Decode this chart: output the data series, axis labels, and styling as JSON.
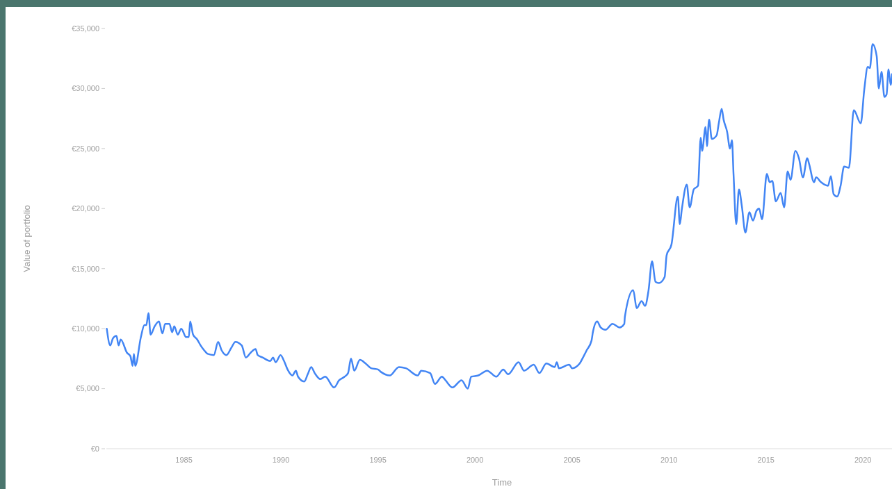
{
  "chart_data": {
    "type": "line",
    "xlabel": "Time",
    "ylabel": "Value of portfolio",
    "xlim": [
      1981,
      2021.5
    ],
    "xticks": [
      1985,
      1990,
      1995,
      2000,
      2005,
      2010,
      2015,
      2020
    ],
    "ylim": [
      0,
      35000
    ],
    "yticks": [
      {
        "value": 0,
        "label": "€0"
      },
      {
        "value": 5000,
        "label": "€5,000"
      },
      {
        "value": 10000,
        "label": "€10,000"
      },
      {
        "value": 15000,
        "label": "€15,000"
      },
      {
        "value": 20000,
        "label": "€20,000"
      },
      {
        "value": 25000,
        "label": "€25,000"
      },
      {
        "value": 30000,
        "label": "€30,000"
      },
      {
        "value": 35000,
        "label": "€35,000"
      }
    ],
    "grid": false,
    "marker": "none",
    "line_style": "solid",
    "series": [
      {
        "color": "#4285f4",
        "x": [
          1981.02,
          1981.2,
          1981.34,
          1981.52,
          1981.63,
          1981.74,
          1982.06,
          1982.24,
          1982.35,
          1982.42,
          1982.49,
          1982.78,
          1982.96,
          1983.06,
          1983.17,
          1983.28,
          1983.49,
          1983.71,
          1983.89,
          1984.03,
          1984.25,
          1984.39,
          1984.5,
          1984.68,
          1984.86,
          1985.11,
          1985.25,
          1985.32,
          1985.47,
          1985.68,
          1985.86,
          1986.04,
          1986.22,
          1986.54,
          1986.76,
          1986.94,
          1987.19,
          1987.44,
          1987.65,
          1987.98,
          1988.19,
          1988.44,
          1988.69,
          1988.8,
          1989.05,
          1989.45,
          1989.59,
          1989.73,
          1989.98,
          1990.16,
          1990.34,
          1990.59,
          1990.77,
          1990.88,
          1991.2,
          1991.38,
          1991.56,
          1991.74,
          1992.03,
          1992.28,
          1992.74,
          1993.0,
          1993.28,
          1993.46,
          1993.61,
          1993.78,
          1994.07,
          1994.36,
          1994.65,
          1995.0,
          1995.15,
          1995.61,
          1996.08,
          1996.44,
          1997.05,
          1997.23,
          1997.69,
          1997.94,
          1998.3,
          1998.48,
          1998.84,
          1999.31,
          1999.63,
          1999.81,
          2000.17,
          2000.63,
          2001.1,
          2001.46,
          2001.71,
          2002.25,
          2002.53,
          2003.03,
          2003.32,
          2003.68,
          2004.11,
          2004.22,
          2004.33,
          2004.86,
          2005.01,
          2005.4,
          2005.54,
          2005.76,
          2006.01,
          2006.08,
          2006.3,
          2006.48,
          2006.73,
          2007.09,
          2007.45,
          2007.7,
          2007.73,
          2008.16,
          2008.34,
          2008.59,
          2008.77,
          2008.95,
          2009.13,
          2009.31,
          2009.49,
          2009.78,
          2009.88,
          2010.13,
          2010.46,
          2010.56,
          2010.67,
          2010.92,
          2011.07,
          2011.28,
          2011.5,
          2011.64,
          2011.71,
          2011.89,
          2011.96,
          2012.07,
          2012.21,
          2012.46,
          2012.57,
          2012.72,
          2012.82,
          2013.0,
          2013.15,
          2013.25,
          2013.33,
          2013.47,
          2013.61,
          2013.76,
          2013.94,
          2014.15,
          2014.33,
          2014.51,
          2014.65,
          2014.8,
          2015.05,
          2015.19,
          2015.33,
          2015.51,
          2015.76,
          2015.94,
          2016.12,
          2016.27,
          2016.52,
          2016.7,
          2016.91,
          2017.13,
          2017.23,
          2017.48,
          2017.59,
          2017.84,
          2018.2,
          2018.35,
          2018.49,
          2018.67,
          2018.85,
          2019.03,
          2019.28,
          2019.53,
          2019.89,
          2020.07,
          2020.25,
          2020.36,
          2020.5,
          2020.71,
          2020.82,
          2020.96,
          2021.11,
          2021.22,
          2021.32,
          2021.43,
          2021.5
        ],
        "values": [
          10000,
          8600,
          9200,
          9400,
          8600,
          9100,
          8000,
          7700,
          6900,
          7900,
          6900,
          9300,
          10300,
          10300,
          11300,
          9500,
          10200,
          10600,
          9600,
          10400,
          10400,
          9700,
          10200,
          9500,
          10000,
          9300,
          9300,
          10600,
          9500,
          9100,
          8600,
          8200,
          7900,
          7800,
          8900,
          8200,
          7800,
          8400,
          8900,
          8600,
          7600,
          8000,
          8300,
          7800,
          7600,
          7300,
          7600,
          7200,
          7800,
          7300,
          6600,
          6100,
          6500,
          6000,
          5600,
          6200,
          6800,
          6300,
          5800,
          6000,
          5100,
          5700,
          6000,
          6300,
          7500,
          6500,
          7400,
          7100,
          6700,
          6600,
          6400,
          6100,
          6800,
          6700,
          6100,
          6500,
          6300,
          5400,
          6000,
          5700,
          5100,
          5700,
          5000,
          6000,
          6100,
          6500,
          6000,
          6600,
          6200,
          7200,
          6500,
          7000,
          6300,
          7100,
          6800,
          7200,
          6700,
          7000,
          6700,
          7100,
          7500,
          8200,
          9000,
          9700,
          10600,
          10100,
          9900,
          10400,
          10100,
          10400,
          11000,
          13200,
          11700,
          12300,
          11900,
          13200,
          15600,
          13900,
          13800,
          14300,
          16100,
          17000,
          21000,
          18700,
          20000,
          22000,
          20100,
          21600,
          21900,
          25900,
          24800,
          26800,
          25200,
          27400,
          25800,
          26100,
          27100,
          28300,
          27400,
          26400,
          25000,
          25700,
          22900,
          18700,
          21600,
          20200,
          18000,
          19700,
          19000,
          19800,
          20000,
          19100,
          22900,
          22200,
          22300,
          20600,
          21300,
          20100,
          23100,
          22400,
          24800,
          24200,
          22600,
          24200,
          23700,
          22200,
          22600,
          22200,
          21900,
          22700,
          21200,
          21000,
          21900,
          23500,
          23400,
          28200,
          27100,
          29900,
          31800,
          31700,
          33700,
          32700,
          30000,
          31400,
          29300,
          29500,
          31600,
          30300,
          31200
        ]
      }
    ]
  }
}
